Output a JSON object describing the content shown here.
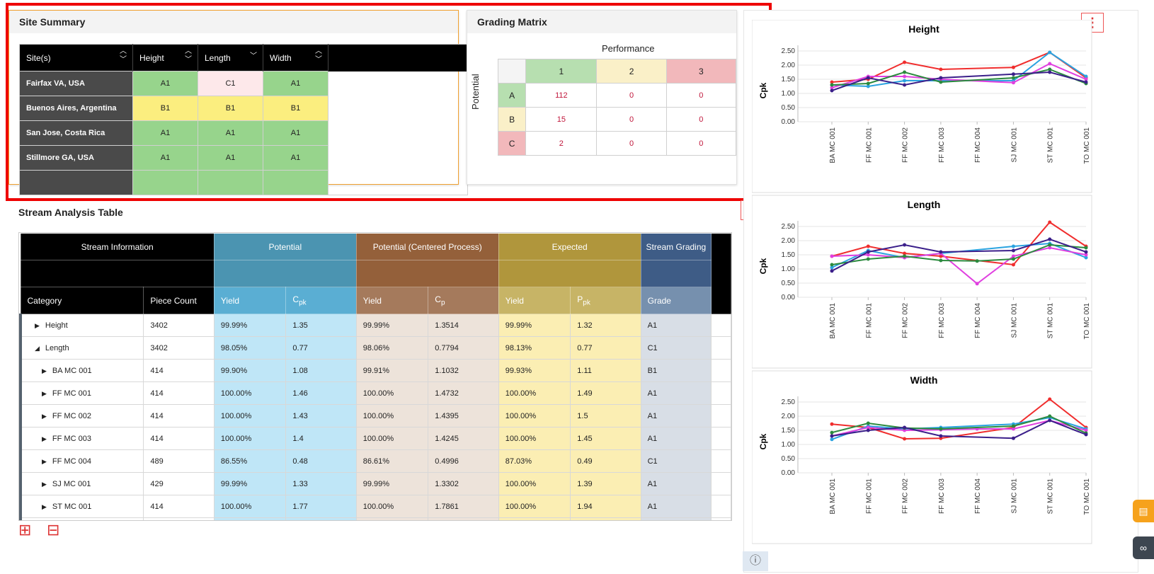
{
  "site_summary": {
    "title": "Site Summary",
    "columns": [
      "Site(s)",
      "Height",
      "Length",
      "Width"
    ],
    "rows": [
      {
        "site": "Fairfax VA, USA",
        "height": "A1",
        "length": "C1",
        "width": "A1"
      },
      {
        "site": "Buenos Aires, Argentina",
        "height": "B1",
        "length": "B1",
        "width": "B1"
      },
      {
        "site": "San Jose, Costa Rica",
        "height": "A1",
        "length": "A1",
        "width": "A1"
      },
      {
        "site": "Stillmore GA, USA",
        "height": "A1",
        "length": "A1",
        "width": "A1"
      }
    ]
  },
  "grading_matrix": {
    "title": "Grading Matrix",
    "col_axis": "Performance",
    "row_axis": "Potential",
    "cols": [
      "1",
      "2",
      "3"
    ],
    "rows": [
      {
        "label": "A",
        "values": [
          "112",
          "0",
          "0"
        ]
      },
      {
        "label": "B",
        "values": [
          "15",
          "0",
          "0"
        ]
      },
      {
        "label": "C",
        "values": [
          "2",
          "0",
          "0"
        ]
      }
    ]
  },
  "stream": {
    "title": "Stream Analysis Table",
    "groups": {
      "info": "Stream Information",
      "potential": "Potential",
      "centered": "Potential (Centered Process)",
      "expected": "Expected",
      "grading": "Stream Grading"
    },
    "headers": {
      "category": "Category",
      "piece_count": "Piece Count",
      "yield": "Yield",
      "cpk": "C",
      "cpk_sub": "pk",
      "cp": "C",
      "cp_sub": "p",
      "ppk": "P",
      "ppk_sub": "pk",
      "grade": "Grade"
    },
    "rows": [
      {
        "cat": "Height",
        "lvl": 0,
        "tri": "▶",
        "pc": "3402",
        "y1": "99.99%",
        "cpk": "1.35",
        "y2": "99.99%",
        "cp": "1.3514",
        "y3": "99.99%",
        "ppk": "1.32",
        "grade": "A1"
      },
      {
        "cat": "Length",
        "lvl": 0,
        "tri": "◢",
        "pc": "3402",
        "y1": "98.05%",
        "cpk": "0.77",
        "y2": "98.06%",
        "cp": "0.7794",
        "y3": "98.13%",
        "ppk": "0.77",
        "grade": "C1"
      },
      {
        "cat": "BA MC 001",
        "lvl": 1,
        "tri": "▶",
        "pc": "414",
        "y1": "99.90%",
        "cpk": "1.08",
        "y2": "99.91%",
        "cp": "1.1032",
        "y3": "99.93%",
        "ppk": "1.11",
        "grade": "B1"
      },
      {
        "cat": "FF MC 001",
        "lvl": 1,
        "tri": "▶",
        "pc": "414",
        "y1": "100.00%",
        "cpk": "1.46",
        "y2": "100.00%",
        "cp": "1.4732",
        "y3": "100.00%",
        "ppk": "1.49",
        "grade": "A1"
      },
      {
        "cat": "FF MC 002",
        "lvl": 1,
        "tri": "▶",
        "pc": "414",
        "y1": "100.00%",
        "cpk": "1.43",
        "y2": "100.00%",
        "cp": "1.4395",
        "y3": "100.00%",
        "ppk": "1.5",
        "grade": "A1"
      },
      {
        "cat": "FF MC 003",
        "lvl": 1,
        "tri": "▶",
        "pc": "414",
        "y1": "100.00%",
        "cpk": "1.4",
        "y2": "100.00%",
        "cp": "1.4245",
        "y3": "100.00%",
        "ppk": "1.45",
        "grade": "A1"
      },
      {
        "cat": "FF MC 004",
        "lvl": 1,
        "tri": "▶",
        "pc": "489",
        "y1": "86.55%",
        "cpk": "0.48",
        "y2": "86.61%",
        "cp": "0.4996",
        "y3": "87.03%",
        "ppk": "0.49",
        "grade": "C1"
      },
      {
        "cat": "SJ MC 001",
        "lvl": 1,
        "tri": "▶",
        "pc": "429",
        "y1": "99.99%",
        "cpk": "1.33",
        "y2": "99.99%",
        "cp": "1.3302",
        "y3": "100.00%",
        "ppk": "1.39",
        "grade": "A1"
      },
      {
        "cat": "ST MC 001",
        "lvl": 1,
        "tri": "▶",
        "pc": "414",
        "y1": "100.00%",
        "cpk": "1.77",
        "y2": "100.00%",
        "cp": "1.7861",
        "y3": "100.00%",
        "ppk": "1.94",
        "grade": "A1"
      }
    ]
  },
  "icons": {
    "kebab": "⋮",
    "expand": "⊞",
    "collapse": "⊟",
    "info": "ⓘ",
    "chat": "💬",
    "link": "🔗"
  },
  "chart_data": [
    {
      "type": "line",
      "title": "Height",
      "ylabel": "Cpk",
      "ylim": [
        0,
        2.5
      ],
      "x": [
        "BA MC 001",
        "FF MC 001",
        "FF MC 002",
        "FF MC 003",
        "FF MC 004",
        "SJ MC 001",
        "ST MC 001",
        "TO MC 001"
      ],
      "series": [
        {
          "color": "#f02d2d",
          "values": [
            1.4,
            1.5,
            2.1,
            1.85,
            null,
            1.92,
            2.45,
            1.55
          ]
        },
        {
          "color": "#2aa3e0",
          "values": [
            1.3,
            1.25,
            1.45,
            1.45,
            null,
            1.45,
            2.45,
            1.6
          ]
        },
        {
          "color": "#e040e0",
          "values": [
            1.2,
            1.6,
            1.6,
            1.5,
            null,
            1.38,
            2.05,
            1.5
          ]
        },
        {
          "color": "#2b8a3e",
          "values": [
            1.3,
            1.35,
            1.75,
            1.4,
            null,
            1.55,
            1.85,
            1.35
          ]
        },
        {
          "color": "#3b1f8a",
          "values": [
            1.1,
            1.55,
            1.3,
            1.55,
            null,
            1.68,
            1.75,
            1.4
          ]
        }
      ]
    },
    {
      "type": "line",
      "title": "Length",
      "ylabel": "Cpk",
      "ylim": [
        0,
        2.5
      ],
      "x": [
        "BA MC 001",
        "FF MC 001",
        "FF MC 002",
        "FF MC 003",
        "FF MC 004",
        "SJ MC 001",
        "ST MC 001",
        "TO MC 001"
      ],
      "series": [
        {
          "color": "#f02d2d",
          "values": [
            1.45,
            1.8,
            1.55,
            1.45,
            null,
            1.15,
            2.65,
            1.8
          ]
        },
        {
          "color": "#2aa3e0",
          "values": [
            1.05,
            1.65,
            1.4,
            1.55,
            null,
            1.8,
            1.9,
            1.4
          ]
        },
        {
          "color": "#e040e0",
          "values": [
            1.45,
            1.5,
            1.4,
            1.55,
            0.48,
            1.45,
            1.75,
            1.5
          ]
        },
        {
          "color": "#2b8a3e",
          "values": [
            1.15,
            1.35,
            1.45,
            1.3,
            1.28,
            1.35,
            1.85,
            1.75
          ]
        },
        {
          "color": "#3b1f8a",
          "values": [
            0.93,
            1.6,
            1.85,
            1.6,
            null,
            1.65,
            2.05,
            1.6
          ]
        }
      ]
    },
    {
      "type": "line",
      "title": "Width",
      "ylabel": "Cpk",
      "ylim": [
        0,
        2.5
      ],
      "x": [
        "BA MC 001",
        "FF MC 001",
        "FF MC 002",
        "FF MC 003",
        "FF MC 004",
        "SJ MC 001",
        "ST MC 001",
        "TO MC 001"
      ],
      "series": [
        {
          "color": "#f02d2d",
          "values": [
            1.72,
            1.6,
            1.2,
            1.22,
            null,
            1.6,
            2.6,
            1.6
          ]
        },
        {
          "color": "#2aa3e0",
          "values": [
            1.18,
            1.65,
            1.55,
            1.6,
            null,
            1.72,
            1.95,
            1.55
          ]
        },
        {
          "color": "#e040e0",
          "values": [
            1.3,
            1.6,
            1.5,
            1.52,
            1.55,
            1.55,
            1.85,
            1.5
          ]
        },
        {
          "color": "#2b8a3e",
          "values": [
            1.42,
            1.75,
            1.58,
            1.55,
            null,
            1.65,
            2.0,
            1.4
          ]
        },
        {
          "color": "#3b1f8a",
          "values": [
            1.3,
            1.5,
            1.6,
            1.3,
            null,
            1.22,
            1.85,
            1.35
          ]
        }
      ]
    }
  ]
}
